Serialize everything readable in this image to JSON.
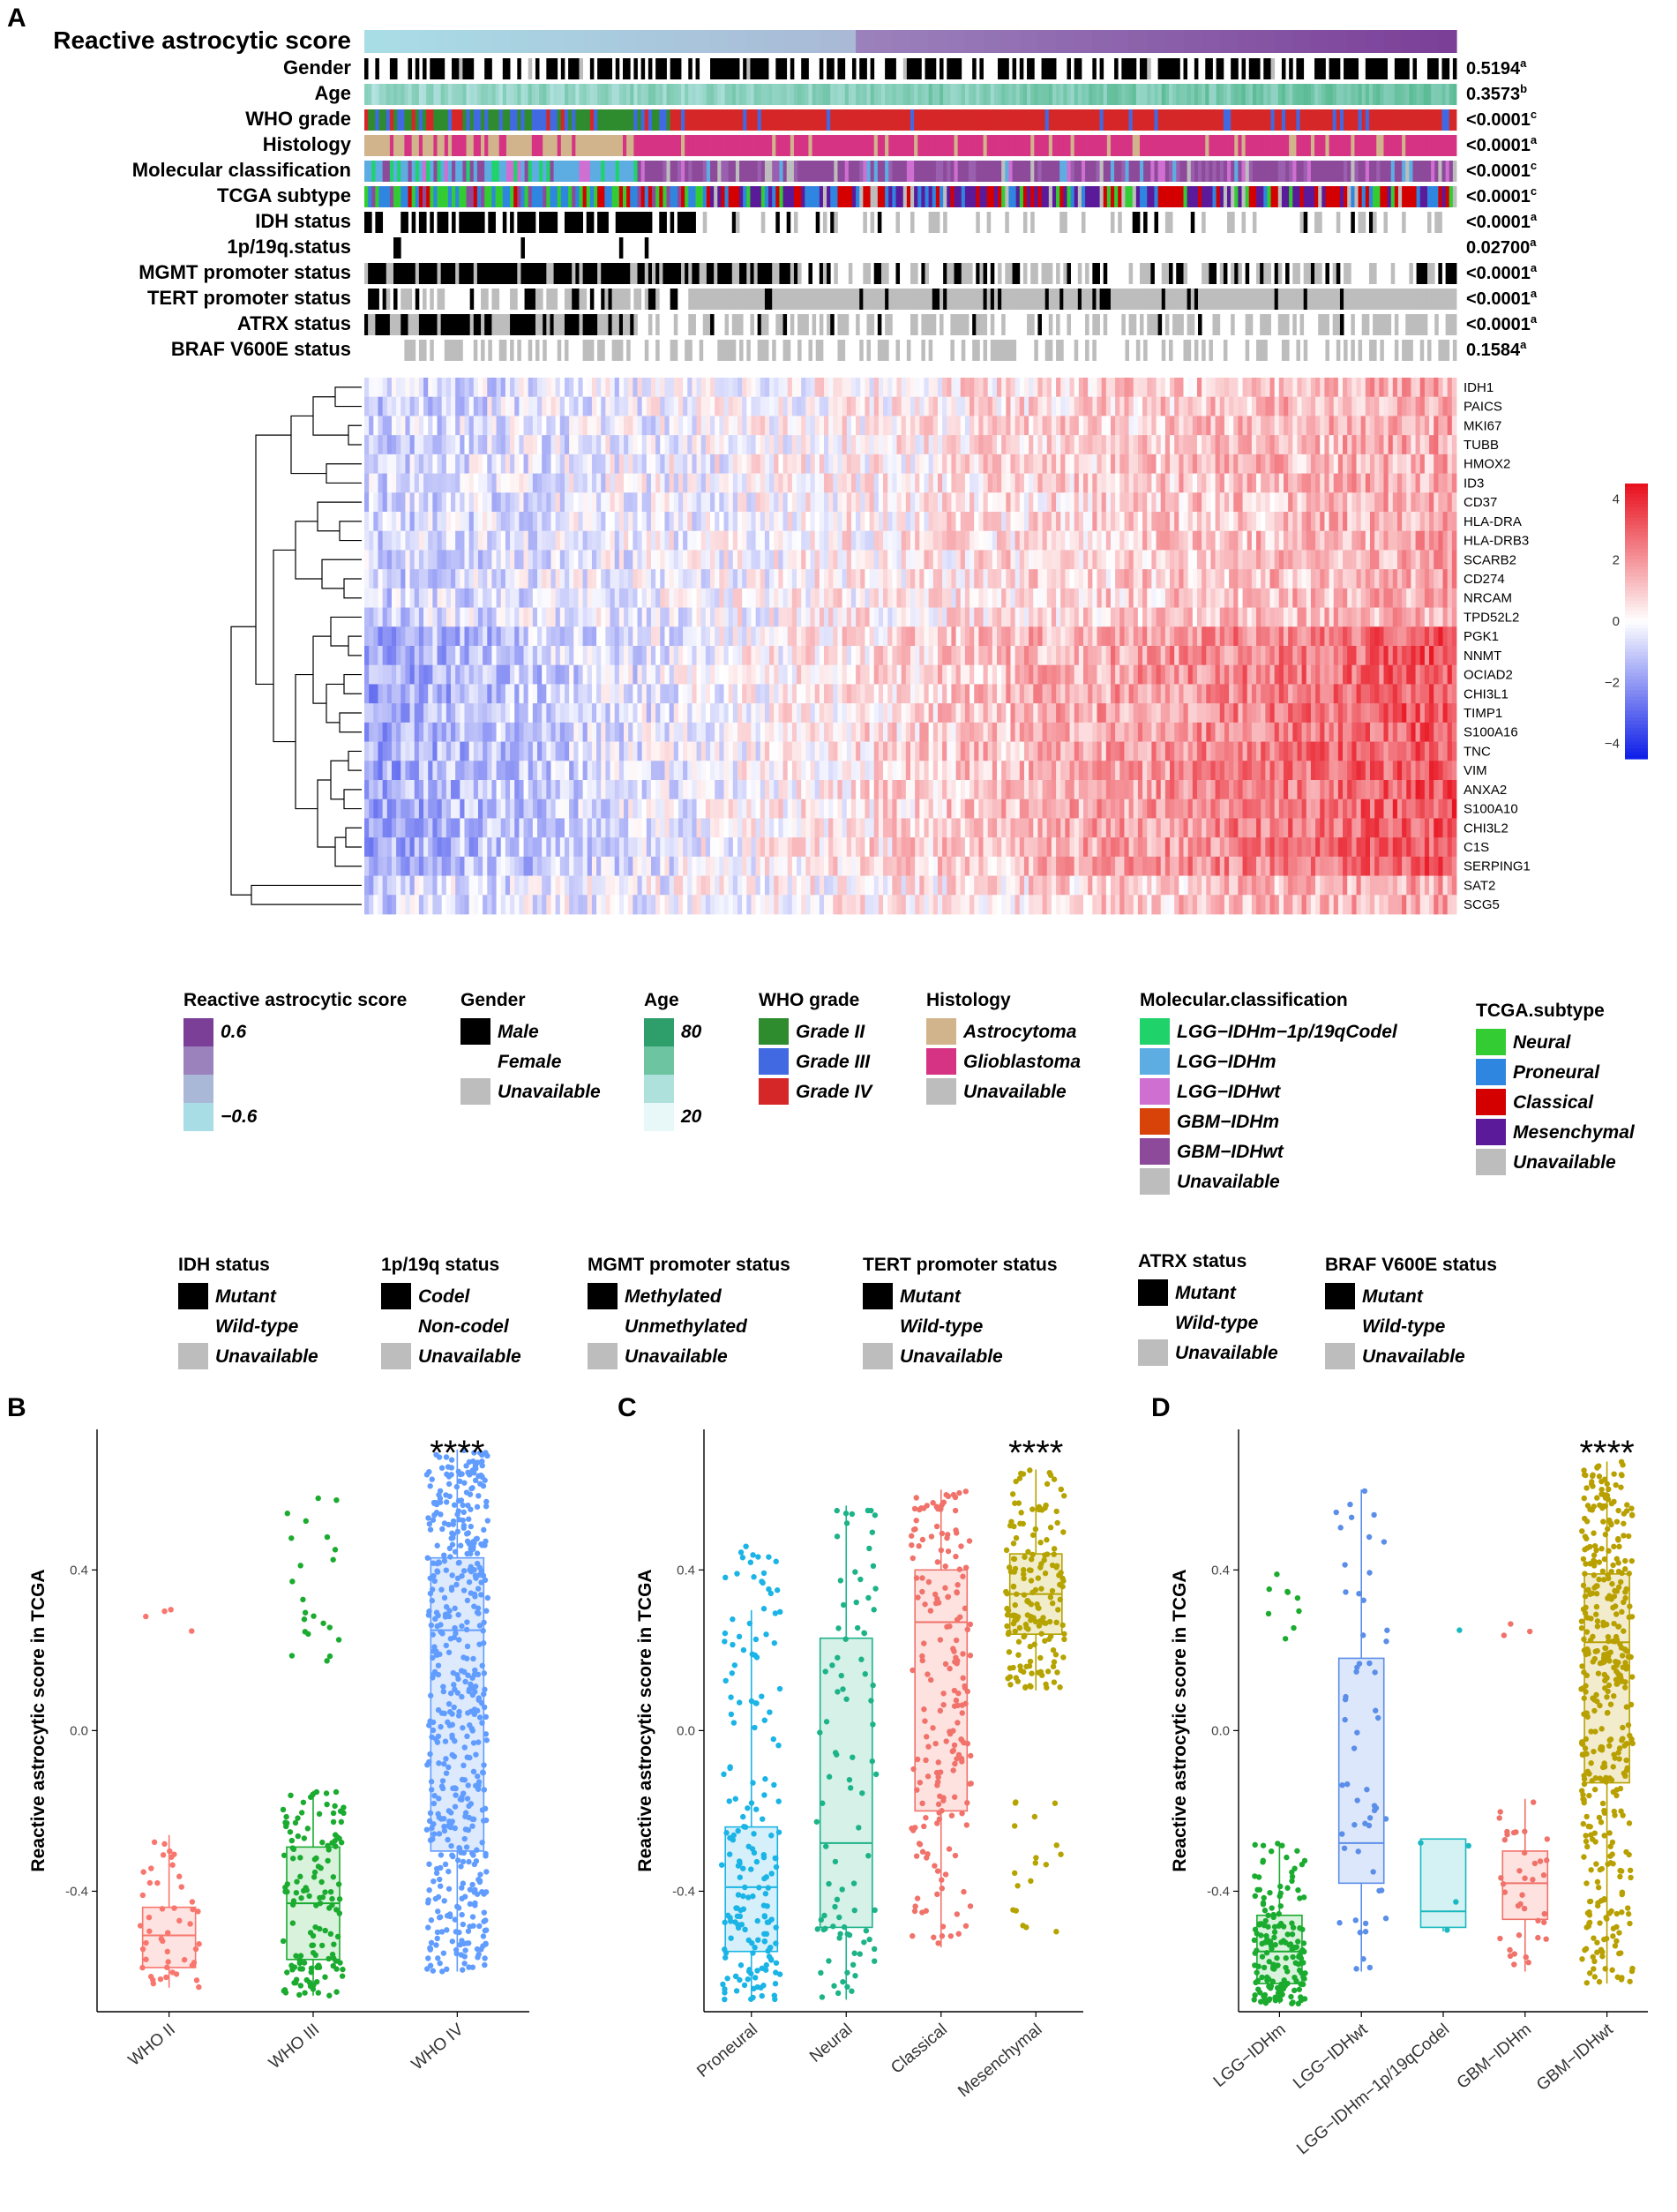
{
  "panel_labels": {
    "a": "A",
    "b": "B",
    "c": "C",
    "d": "D"
  },
  "heatmap": {
    "title": "Reactive astrocytic score",
    "tracks": [
      {
        "key": "gender",
        "label": "Gender",
        "p": "0.5194",
        "sup": "a"
      },
      {
        "key": "age",
        "label": "Age",
        "p": "0.3573",
        "sup": "b"
      },
      {
        "key": "who",
        "label": "WHO grade",
        "p": "<0.0001",
        "sup": "c"
      },
      {
        "key": "histology",
        "label": "Histology",
        "p": "<0.0001",
        "sup": "a"
      },
      {
        "key": "molecular",
        "label": "Molecular classification",
        "p": "<0.0001",
        "sup": "c"
      },
      {
        "key": "tcga",
        "label": "TCGA subtype",
        "p": "<0.0001",
        "sup": "c"
      },
      {
        "key": "idh",
        "label": "IDH status",
        "p": "<0.0001",
        "sup": "a"
      },
      {
        "key": "codel",
        "label": "1p/19q.status",
        "p": "0.02700",
        "sup": "a"
      },
      {
        "key": "mgmt",
        "label": "MGMT promoter status",
        "p": "<0.0001",
        "sup": "a"
      },
      {
        "key": "tert",
        "label": "TERT promoter status",
        "p": "<0.0001",
        "sup": "a"
      },
      {
        "key": "atrx",
        "label": "ATRX status",
        "p": "<0.0001",
        "sup": "a"
      },
      {
        "key": "braf",
        "label": "BRAF V600E status",
        "p": "0.1584",
        "sup": "a"
      }
    ],
    "genes": [
      "IDH1",
      "PAICS",
      "MKI67",
      "TUBB",
      "HMOX2",
      "ID3",
      "CD37",
      "HLA-DRA",
      "HLA-DRB3",
      "SCARB2",
      "CD274",
      "NRCAM",
      "TPD52L2",
      "PGK1",
      "NNMT",
      "OCIAD2",
      "CHI3L1",
      "TIMP1",
      "S100A16",
      "TNC",
      "VIM",
      "ANXA2",
      "S100A10",
      "CHI3L2",
      "C1S",
      "SERPING1",
      "SAT2",
      "SCG5"
    ],
    "colorbar": {
      "ticks": [
        "4",
        "2",
        "0",
        "−2",
        "−4"
      ],
      "max": 4.5,
      "min": -4.5
    }
  },
  "legends": [
    {
      "title": "Reactive astrocytic score",
      "items": [
        {
          "label": "0.6",
          "color": "#7b3f98"
        },
        {
          "label": "",
          "color": "#9b82bd"
        },
        {
          "label": "",
          "color": "#a9b8d6"
        },
        {
          "label": "−0.6",
          "color": "#a9dde6"
        }
      ]
    },
    {
      "title": "Gender",
      "items": [
        {
          "label": "Male",
          "color": "#000000"
        },
        {
          "label": "Female",
          "color": "#ffffff"
        },
        {
          "label": "Unavailable",
          "color": "#bdbdbd"
        }
      ]
    },
    {
      "title": "Age",
      "items": [
        {
          "label": "80",
          "color": "#2e9e6a"
        },
        {
          "label": "",
          "color": "#6cc4a1"
        },
        {
          "label": "",
          "color": "#aee0dc"
        },
        {
          "label": "20",
          "color": "#e8f7f8"
        }
      ]
    },
    {
      "title": "WHO grade",
      "items": [
        {
          "label": "Grade II",
          "color": "#2e8b2e"
        },
        {
          "label": "Grade III",
          "color": "#4169e1"
        },
        {
          "label": "Grade IV",
          "color": "#d62728"
        }
      ]
    },
    {
      "title": "Histology",
      "items": [
        {
          "label": "Astrocytoma",
          "color": "#d2b48c"
        },
        {
          "label": "Glioblastoma",
          "color": "#d63384"
        },
        {
          "label": "Unavailable",
          "color": "#bdbdbd"
        }
      ]
    },
    {
      "title": "Molecular.classification",
      "items": [
        {
          "label": "LGG−IDHm−1p/19qCodel",
          "color": "#1fd36a"
        },
        {
          "label": "LGG−IDHm",
          "color": "#5dade2"
        },
        {
          "label": "LGG−IDHwt",
          "color": "#cf6fd1"
        },
        {
          "label": "GBM−IDHm",
          "color": "#d8430a"
        },
        {
          "label": "GBM−IDHwt",
          "color": "#8e4a9a"
        },
        {
          "label": "Unavailable",
          "color": "#bdbdbd"
        }
      ]
    },
    {
      "title": "TCGA.subtype",
      "items": [
        {
          "label": "Neural",
          "color": "#33cc33"
        },
        {
          "label": "Proneural",
          "color": "#2f86e0"
        },
        {
          "label": "Classical",
          "color": "#d40000"
        },
        {
          "label": "Mesenchymal",
          "color": "#5b1a9a"
        },
        {
          "label": "Unavailable",
          "color": "#bdbdbd"
        }
      ]
    },
    {
      "title": "IDH status",
      "items": [
        {
          "label": "Mutant",
          "color": "#000000"
        },
        {
          "label": "Wild-type",
          "color": "#ffffff"
        },
        {
          "label": "Unavailable",
          "color": "#bdbdbd"
        }
      ]
    },
    {
      "title": "1p/19q status",
      "items": [
        {
          "label": "Codel",
          "color": "#000000"
        },
        {
          "label": "Non-codel",
          "color": "#ffffff"
        },
        {
          "label": "Unavailable",
          "color": "#bdbdbd"
        }
      ]
    },
    {
      "title": "MGMT promoter status",
      "items": [
        {
          "label": "Methylated",
          "color": "#000000"
        },
        {
          "label": "Unmethylated",
          "color": "#ffffff"
        },
        {
          "label": "Unavailable",
          "color": "#bdbdbd"
        }
      ]
    },
    {
      "title": "TERT promoter status",
      "items": [
        {
          "label": "Mutant",
          "color": "#000000"
        },
        {
          "label": "Wild-type",
          "color": "#ffffff"
        },
        {
          "label": "Unavailable",
          "color": "#bdbdbd"
        }
      ]
    },
    {
      "title": "ATRX status",
      "items": [
        {
          "label": "Mutant",
          "color": "#000000"
        },
        {
          "label": "Wild-type",
          "color": "#ffffff"
        },
        {
          "label": "Unavailable",
          "color": "#bdbdbd"
        }
      ]
    },
    {
      "title": "BRAF V600E status",
      "items": [
        {
          "label": "Mutant",
          "color": "#000000"
        },
        {
          "label": "Wild-type",
          "color": "#ffffff"
        },
        {
          "label": "Unavailable",
          "color": "#bdbdbd"
        }
      ]
    }
  ],
  "chart_data": [
    {
      "panel": "B",
      "type": "boxplot",
      "ylabel": "Reactive astrocytic score in TCGA",
      "ylim": [
        -0.7,
        0.75
      ],
      "yticks": [
        -0.4,
        0.0,
        0.4
      ],
      "significance": "****",
      "categories": [
        "WHO II",
        "WHO III",
        "WHO IV"
      ],
      "colors": [
        "#f8766d",
        "#1aab2f",
        "#619cff"
      ],
      "fills": [
        "#fde3e1",
        "#d9f2dc",
        "#dde9fd"
      ],
      "boxes": [
        {
          "q1": -0.59,
          "median": -0.51,
          "q3": -0.44,
          "min": -0.64,
          "max": -0.26
        },
        {
          "q1": -0.57,
          "median": -0.43,
          "q3": -0.29,
          "min": -0.66,
          "max": -0.15
        },
        {
          "q1": -0.3,
          "median": 0.25,
          "q3": 0.43,
          "min": -0.6,
          "max": 0.7
        }
      ],
      "n_points": [
        48,
        140,
        520
      ],
      "outlier_groups": [
        [
          0.24,
          0.33,
          4
        ],
        [
          0.17,
          0.6,
          22
        ],
        []
      ]
    },
    {
      "panel": "C",
      "type": "boxplot",
      "ylabel": "Reactive astrocytic score in TCGA",
      "ylim": [
        -0.7,
        0.75
      ],
      "yticks": [
        -0.4,
        0.0,
        0.4
      ],
      "significance": "****",
      "categories": [
        "Proneural",
        "Neural",
        "Classical",
        "Mesenchymal"
      ],
      "colors": [
        "#1ab4e6",
        "#1db388",
        "#f0726a",
        "#b5a300"
      ],
      "fills": [
        "#d5f0fa",
        "#d5f1e8",
        "#fde2e0",
        "#f1ecc9"
      ],
      "boxes": [
        {
          "q1": -0.55,
          "median": -0.39,
          "q3": -0.24,
          "min": -0.67,
          "max": 0.3
        },
        {
          "q1": -0.49,
          "median": -0.28,
          "q3": 0.23,
          "min": -0.67,
          "max": 0.56
        },
        {
          "q1": -0.2,
          "median": 0.27,
          "q3": 0.4,
          "min": -0.54,
          "max": 0.6
        },
        {
          "q1": 0.24,
          "median": 0.34,
          "q3": 0.44,
          "min": 0.1,
          "max": 0.65
        }
      ],
      "n_points": [
        160,
        90,
        190,
        170
      ],
      "outlier_groups": [
        [
          0.26,
          0.46,
          20
        ],
        [],
        [],
        [
          -0.53,
          -0.17,
          18
        ]
      ]
    },
    {
      "panel": "D",
      "type": "boxplot",
      "ylabel": "Reactive astrocytic score in TCGA",
      "ylim": [
        -0.7,
        0.75
      ],
      "yticks": [
        -0.4,
        0.0,
        0.4
      ],
      "significance": "****",
      "categories": [
        "LGG−IDHm",
        "LGG−IDHwt",
        "LGG−IDHm−1p/19qCodel",
        "GBM−IDHm",
        "GBM−IDHwt"
      ],
      "colors": [
        "#1aab2f",
        "#5b8ee8",
        "#1ab8c0",
        "#f0726a",
        "#b8a000"
      ],
      "fills": [
        "#d9f2dc",
        "#dde7fb",
        "#d4f2f3",
        "#fde2e0",
        "#f2eccc"
      ],
      "boxes": [
        {
          "q1": -0.63,
          "median": -0.55,
          "q3": -0.46,
          "min": -0.68,
          "max": -0.28
        },
        {
          "q1": -0.38,
          "median": -0.28,
          "q3": 0.18,
          "min": -0.6,
          "max": 0.6
        },
        {
          "q1": -0.49,
          "median": -0.45,
          "q3": -0.27,
          "min": -0.5,
          "max": -0.27
        },
        {
          "q1": -0.47,
          "median": -0.38,
          "q3": -0.3,
          "min": -0.6,
          "max": -0.17
        },
        {
          "q1": -0.13,
          "median": 0.22,
          "q3": 0.39,
          "min": -0.63,
          "max": 0.67
        }
      ],
      "n_points": [
        170,
        55,
        4,
        38,
        420
      ],
      "outlier_groups": [
        [
          0.22,
          0.39,
          9
        ],
        [],
        [
          0.25,
          0.25,
          1
        ],
        [
          0.22,
          0.28,
          3
        ],
        []
      ]
    }
  ]
}
